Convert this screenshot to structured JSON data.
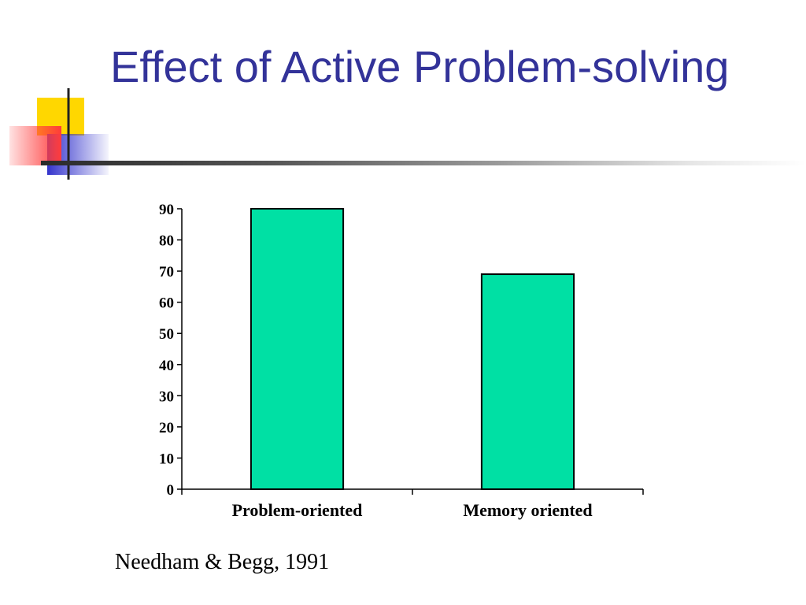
{
  "slide": {
    "title": "Effect of Active Problem-solving",
    "citation": "Needham & Begg, 1991"
  },
  "colors": {
    "title": "#333399",
    "bar_fill": "#00E0A4",
    "deco_yellow": "#FFD700",
    "deco_red": "#FF3B3B",
    "deco_blue": "#3333CC"
  },
  "chart_data": {
    "type": "bar",
    "categories": [
      "Problem-oriented",
      "Memory oriented"
    ],
    "values": [
      90,
      69
    ],
    "title": "",
    "xlabel": "",
    "ylabel": "",
    "ylim": [
      0,
      90
    ],
    "yticks": [
      0,
      10,
      20,
      30,
      40,
      50,
      60,
      70,
      80,
      90
    ],
    "grid": false,
    "legend": "none"
  }
}
